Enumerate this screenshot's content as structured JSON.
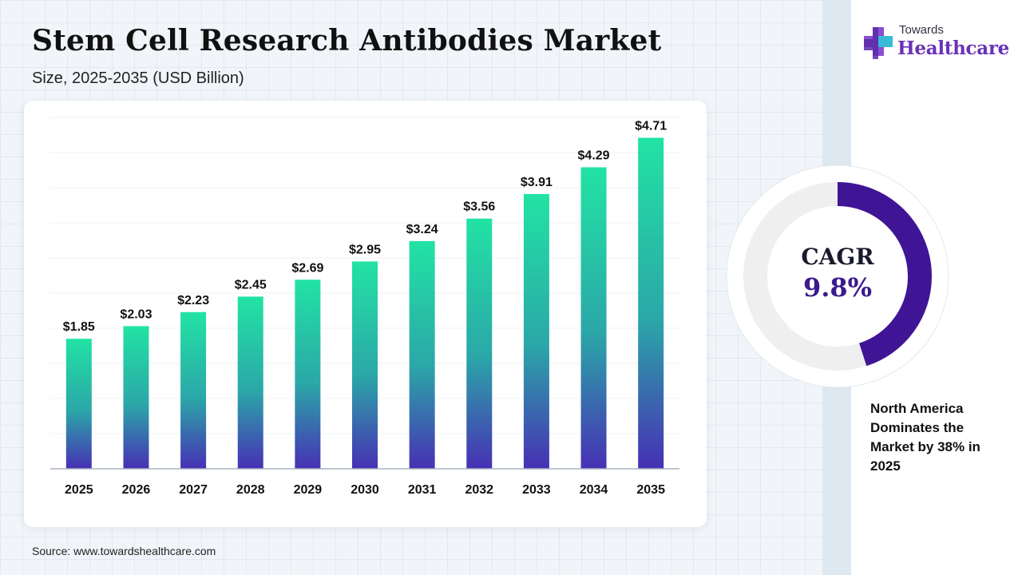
{
  "header": {
    "title": "Stem Cell Research Antibodies Market",
    "subtitle": "Size, 2025-2035 (USD Billion)"
  },
  "logo": {
    "line1": "Towards",
    "line2": "Healthcare"
  },
  "cagr": {
    "label": "CAGR",
    "value": "9.8%",
    "ring_fraction": 0.45
  },
  "callout": {
    "text": "North America Dominates the Market by 38% in 2025"
  },
  "footer": {
    "source": "Source: www.towardshealthcare.com"
  },
  "colors": {
    "bar_top": "#22e3a4",
    "bar_mid": "#2ba7a8",
    "bar_bottom": "#4730b4",
    "ring_fill": "#3f1596",
    "ring_track": "#efefef",
    "accent": "#6a32b8"
  },
  "chart_data": {
    "type": "bar",
    "title": "Stem Cell Research Antibodies Market",
    "subtitle": "Size, 2025-2035 (USD Billion)",
    "categories": [
      "2025",
      "2026",
      "2027",
      "2028",
      "2029",
      "2030",
      "2031",
      "2032",
      "2033",
      "2034",
      "2035"
    ],
    "values": [
      1.85,
      2.03,
      2.23,
      2.45,
      2.69,
      2.95,
      3.24,
      3.56,
      3.91,
      4.29,
      4.71
    ],
    "value_labels": [
      "$1.85",
      "$2.03",
      "$2.23",
      "$2.45",
      "$2.69",
      "$2.95",
      "$3.24",
      "$3.56",
      "$3.91",
      "$4.29",
      "$4.71"
    ],
    "ylim": [
      0,
      5
    ],
    "xlabel": "",
    "ylabel": "",
    "grid": true,
    "legend": "none"
  }
}
